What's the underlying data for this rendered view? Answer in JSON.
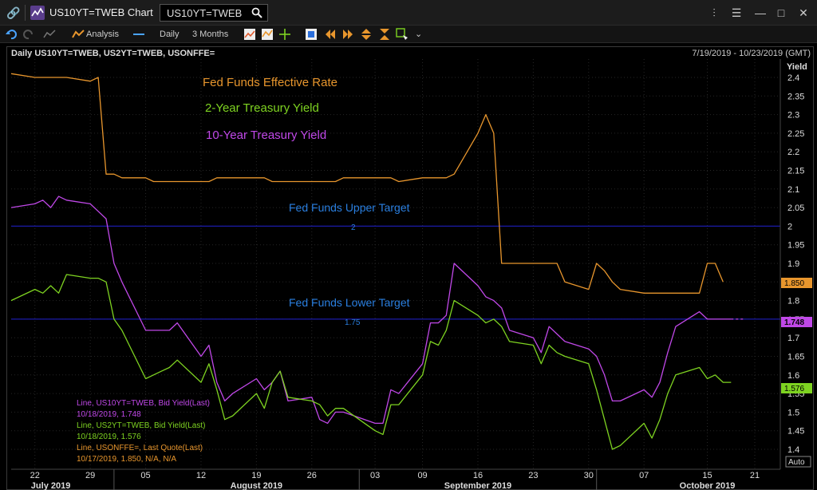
{
  "window": {
    "title": "US10YT=TWEB Chart",
    "search_value": "US10YT=TWEB"
  },
  "toolbar": {
    "analysis_label": "Analysis",
    "interval_label": "Daily",
    "range_label": "3 Months"
  },
  "chart_header": {
    "instruments": "Daily US10YT=TWEB, US2YT=TWEB, USONFFE=",
    "date_range": "7/19/2019 - 10/23/2019 (GMT)"
  },
  "legend_top": [
    {
      "label": "Fed Funds Effective Rate",
      "color": "#e8962d"
    },
    {
      "label": "2-Year Treasury Yield",
      "color": "#7ed321"
    },
    {
      "label": "10-Year Treasury Yield",
      "color": "#c048e8"
    }
  ],
  "annotations": {
    "upper_target_label": "Fed Funds Upper Target",
    "upper_target_value": "2",
    "lower_target_label": "Fed Funds Lower Target",
    "lower_target_value": "1.75"
  },
  "price_tags": {
    "ff": "1.850",
    "t10": "1.748",
    "t2": "1.576"
  },
  "legend_bottom": [
    {
      "line1": "Line, US10YT=TWEB, Bid Yield(Last)",
      "line2": "10/18/2019, 1.748",
      "color": "#c048e8"
    },
    {
      "line1": "Line, US2YT=TWEB, Bid Yield(Last)",
      "line2": "10/18/2019, 1.576",
      "color": "#7ed321"
    },
    {
      "line1": "Line, USONFFE=, Last Quote(Last)",
      "line2": "10/17/2019, 1.850, N/A, N/A",
      "color": "#e8962d"
    }
  ],
  "auto_button": "Auto",
  "chart_data": {
    "type": "line",
    "ylabel": "Yield",
    "ylim": [
      1.36,
      2.42
    ],
    "y_ticks": [
      1.4,
      1.45,
      1.5,
      1.55,
      1.6,
      1.65,
      1.7,
      1.75,
      1.8,
      1.85,
      1.9,
      1.95,
      2,
      2.05,
      2.1,
      2.15,
      2.2,
      2.25,
      2.3,
      2.35,
      2.4
    ],
    "y_tick_labels": [
      "1.4",
      "1.45",
      "1.5",
      "1.55",
      "1.6",
      "1.65",
      "1.7",
      "1.75",
      "1.8",
      "1.85",
      "1.9",
      "1.95",
      "2",
      "2.05",
      "2.1",
      "2.15",
      "2.2",
      "2.25",
      "2.3",
      "2.35",
      "2.4"
    ],
    "x_day_ticks": [
      {
        "date": "2019-07-22",
        "label": "22"
      },
      {
        "date": "2019-07-29",
        "label": "29"
      },
      {
        "date": "2019-08-05",
        "label": "05"
      },
      {
        "date": "2019-08-12",
        "label": "12"
      },
      {
        "date": "2019-08-19",
        "label": "19"
      },
      {
        "date": "2019-08-26",
        "label": "26"
      },
      {
        "date": "2019-09-03",
        "label": "03"
      },
      {
        "date": "2019-09-09",
        "label": "09"
      },
      {
        "date": "2019-09-16",
        "label": "16"
      },
      {
        "date": "2019-09-23",
        "label": "23"
      },
      {
        "date": "2019-09-30",
        "label": "30"
      },
      {
        "date": "2019-10-07",
        "label": "07"
      },
      {
        "date": "2019-10-15",
        "label": "15"
      },
      {
        "date": "2019-10-21",
        "label": "21"
      }
    ],
    "x_month_labels": [
      {
        "date": "2019-07-24",
        "label": "July 2019"
      },
      {
        "date": "2019-08-19",
        "label": "August 2019"
      },
      {
        "date": "2019-09-16",
        "label": "September 2019"
      },
      {
        "date": "2019-10-15",
        "label": "October 2019"
      }
    ],
    "hlines": [
      {
        "y": 2.0,
        "color": "#1a1aa8"
      },
      {
        "y": 1.75,
        "color": "#1a1aa8"
      }
    ],
    "series": [
      {
        "name": "US10YT=TWEB",
        "color": "#c048e8",
        "x": [
          "2019-07-19",
          "2019-07-22",
          "2019-07-23",
          "2019-07-24",
          "2019-07-25",
          "2019-07-26",
          "2019-07-29",
          "2019-07-30",
          "2019-07-31",
          "2019-08-01",
          "2019-08-02",
          "2019-08-05",
          "2019-08-06",
          "2019-08-07",
          "2019-08-08",
          "2019-08-09",
          "2019-08-12",
          "2019-08-13",
          "2019-08-14",
          "2019-08-15",
          "2019-08-16",
          "2019-08-19",
          "2019-08-20",
          "2019-08-21",
          "2019-08-22",
          "2019-08-23",
          "2019-08-26",
          "2019-08-27",
          "2019-08-28",
          "2019-08-29",
          "2019-08-30",
          "2019-09-03",
          "2019-09-04",
          "2019-09-05",
          "2019-09-06",
          "2019-09-09",
          "2019-09-10",
          "2019-09-11",
          "2019-09-12",
          "2019-09-13",
          "2019-09-16",
          "2019-09-17",
          "2019-09-18",
          "2019-09-19",
          "2019-09-20",
          "2019-09-23",
          "2019-09-24",
          "2019-09-25",
          "2019-09-26",
          "2019-09-27",
          "2019-09-30",
          "2019-10-01",
          "2019-10-02",
          "2019-10-03",
          "2019-10-04",
          "2019-10-07",
          "2019-10-08",
          "2019-10-09",
          "2019-10-10",
          "2019-10-11",
          "2019-10-14",
          "2019-10-15",
          "2019-10-16",
          "2019-10-17",
          "2019-10-18"
        ],
        "values": [
          2.05,
          2.06,
          2.07,
          2.05,
          2.08,
          2.07,
          2.06,
          2.04,
          2.02,
          1.9,
          1.85,
          1.72,
          1.72,
          1.72,
          1.72,
          1.74,
          1.65,
          1.68,
          1.58,
          1.53,
          1.55,
          1.59,
          1.56,
          1.58,
          1.61,
          1.53,
          1.54,
          1.48,
          1.47,
          1.5,
          1.5,
          1.47,
          1.47,
          1.56,
          1.55,
          1.63,
          1.74,
          1.74,
          1.76,
          1.9,
          1.84,
          1.81,
          1.8,
          1.78,
          1.72,
          1.7,
          1.66,
          1.73,
          1.71,
          1.69,
          1.67,
          1.65,
          1.6,
          1.53,
          1.53,
          1.56,
          1.54,
          1.58,
          1.66,
          1.73,
          1.77,
          1.75,
          1.75,
          1.75,
          1.75
        ]
      },
      {
        "name": "US2YT=TWEB",
        "color": "#7ed321",
        "x": [
          "2019-07-19",
          "2019-07-22",
          "2019-07-23",
          "2019-07-24",
          "2019-07-25",
          "2019-07-26",
          "2019-07-29",
          "2019-07-30",
          "2019-07-31",
          "2019-08-01",
          "2019-08-02",
          "2019-08-05",
          "2019-08-06",
          "2019-08-07",
          "2019-08-08",
          "2019-08-09",
          "2019-08-12",
          "2019-08-13",
          "2019-08-14",
          "2019-08-15",
          "2019-08-16",
          "2019-08-19",
          "2019-08-20",
          "2019-08-21",
          "2019-08-22",
          "2019-08-23",
          "2019-08-26",
          "2019-08-27",
          "2019-08-28",
          "2019-08-29",
          "2019-08-30",
          "2019-09-03",
          "2019-09-04",
          "2019-09-05",
          "2019-09-06",
          "2019-09-09",
          "2019-09-10",
          "2019-09-11",
          "2019-09-12",
          "2019-09-13",
          "2019-09-16",
          "2019-09-17",
          "2019-09-18",
          "2019-09-19",
          "2019-09-20",
          "2019-09-23",
          "2019-09-24",
          "2019-09-25",
          "2019-09-26",
          "2019-09-27",
          "2019-09-30",
          "2019-10-01",
          "2019-10-02",
          "2019-10-03",
          "2019-10-04",
          "2019-10-07",
          "2019-10-08",
          "2019-10-09",
          "2019-10-10",
          "2019-10-11",
          "2019-10-14",
          "2019-10-15",
          "2019-10-16",
          "2019-10-17",
          "2019-10-18"
        ],
        "values": [
          1.8,
          1.83,
          1.82,
          1.84,
          1.82,
          1.87,
          1.86,
          1.86,
          1.85,
          1.75,
          1.72,
          1.59,
          1.6,
          1.61,
          1.62,
          1.64,
          1.58,
          1.63,
          1.56,
          1.48,
          1.49,
          1.55,
          1.51,
          1.58,
          1.61,
          1.54,
          1.53,
          1.52,
          1.49,
          1.51,
          1.51,
          1.45,
          1.44,
          1.52,
          1.52,
          1.6,
          1.69,
          1.68,
          1.72,
          1.8,
          1.76,
          1.74,
          1.75,
          1.73,
          1.69,
          1.68,
          1.63,
          1.68,
          1.66,
          1.65,
          1.63,
          1.56,
          1.48,
          1.4,
          1.41,
          1.47,
          1.43,
          1.48,
          1.55,
          1.6,
          1.62,
          1.59,
          1.6,
          1.58,
          1.58
        ]
      },
      {
        "name": "USONFFE=",
        "color": "#e8962d",
        "x": [
          "2019-07-19",
          "2019-07-22",
          "2019-07-23",
          "2019-07-24",
          "2019-07-25",
          "2019-07-26",
          "2019-07-29",
          "2019-07-30",
          "2019-07-31",
          "2019-08-01",
          "2019-08-02",
          "2019-08-05",
          "2019-08-06",
          "2019-08-07",
          "2019-08-08",
          "2019-08-09",
          "2019-08-12",
          "2019-08-13",
          "2019-08-14",
          "2019-08-15",
          "2019-08-16",
          "2019-08-19",
          "2019-08-20",
          "2019-08-21",
          "2019-08-22",
          "2019-08-23",
          "2019-08-26",
          "2019-08-27",
          "2019-08-28",
          "2019-08-29",
          "2019-08-30",
          "2019-09-03",
          "2019-09-04",
          "2019-09-05",
          "2019-09-06",
          "2019-09-09",
          "2019-09-10",
          "2019-09-11",
          "2019-09-12",
          "2019-09-13",
          "2019-09-16",
          "2019-09-17",
          "2019-09-18",
          "2019-09-19",
          "2019-09-20",
          "2019-09-23",
          "2019-09-24",
          "2019-09-25",
          "2019-09-26",
          "2019-09-27",
          "2019-09-30",
          "2019-10-01",
          "2019-10-02",
          "2019-10-03",
          "2019-10-04",
          "2019-10-07",
          "2019-10-08",
          "2019-10-09",
          "2019-10-10",
          "2019-10-11",
          "2019-10-14",
          "2019-10-15",
          "2019-10-16",
          "2019-10-17"
        ],
        "values": [
          2.41,
          2.4,
          2.4,
          2.4,
          2.4,
          2.4,
          2.39,
          2.4,
          2.14,
          2.14,
          2.13,
          2.13,
          2.12,
          2.12,
          2.12,
          2.12,
          2.12,
          2.12,
          2.13,
          2.13,
          2.13,
          2.13,
          2.13,
          2.12,
          2.12,
          2.12,
          2.12,
          2.12,
          2.12,
          2.12,
          2.13,
          2.13,
          2.13,
          2.13,
          2.12,
          2.13,
          2.13,
          2.13,
          2.13,
          2.14,
          2.25,
          2.3,
          2.25,
          1.9,
          1.9,
          1.9,
          1.9,
          1.9,
          1.9,
          1.85,
          1.83,
          1.9,
          1.88,
          1.85,
          1.83,
          1.82,
          1.82,
          1.82,
          1.82,
          1.82,
          1.82,
          1.9,
          1.9,
          1.85
        ]
      }
    ]
  }
}
